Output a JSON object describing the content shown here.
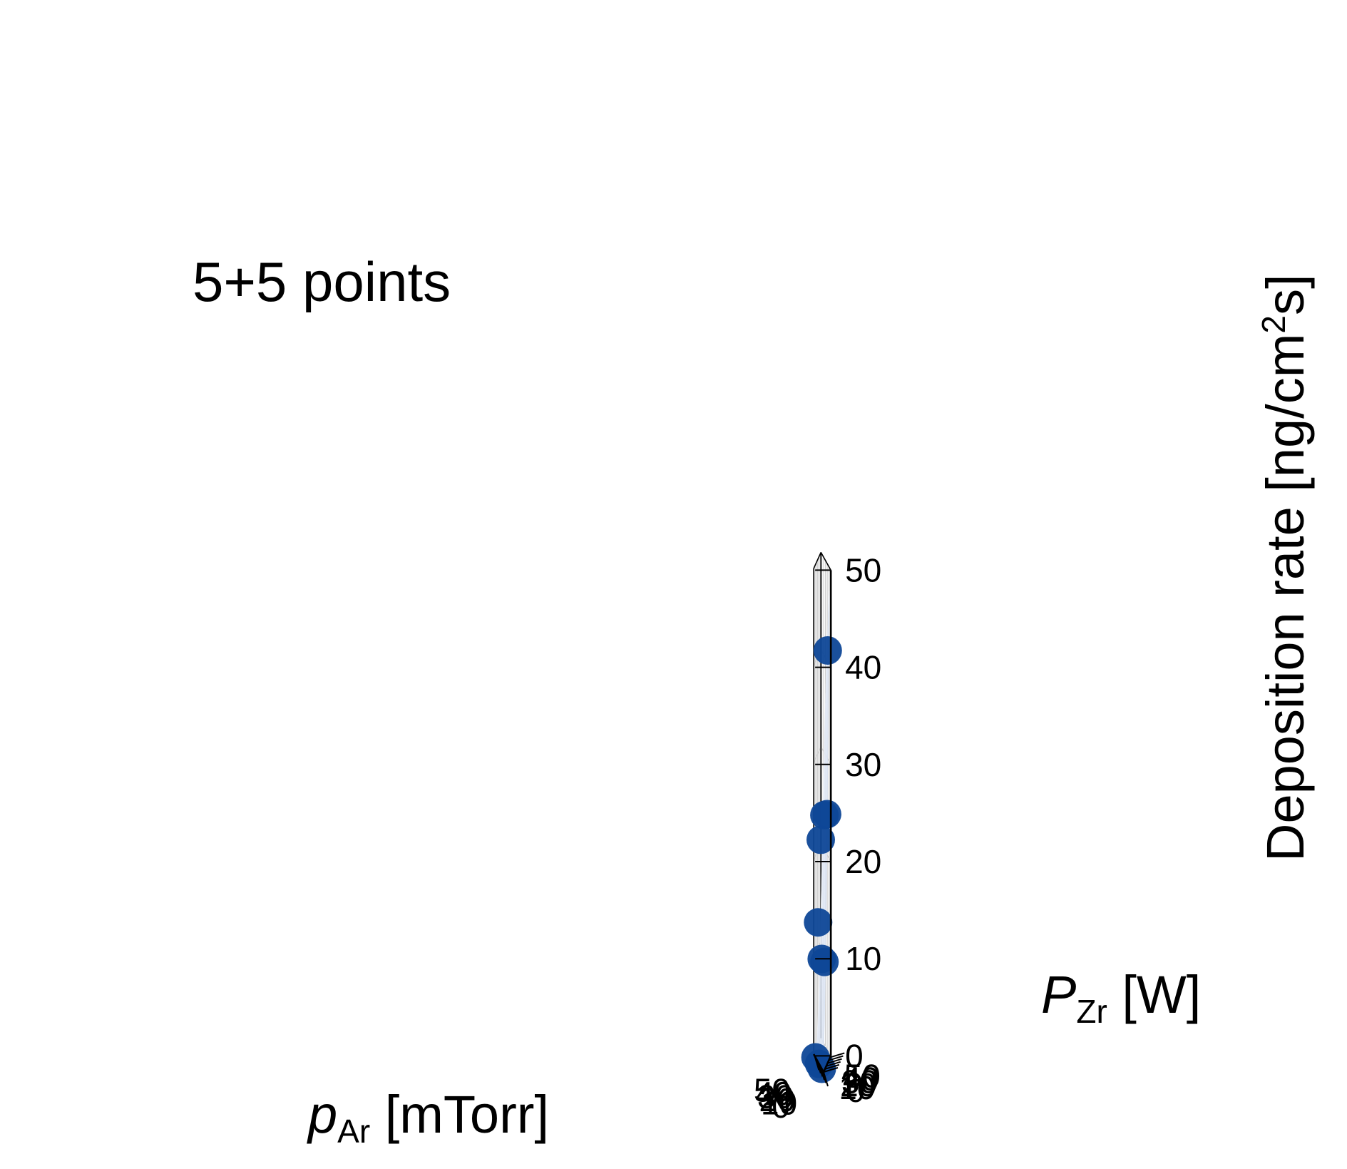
{
  "chart_data": {
    "type": "scatter3d",
    "annotation": "5+5 points",
    "x_axis": {
      "label_main": "p",
      "label_sub": "Ar",
      "label_unit": " [mTorr]",
      "ticks": [
        "0",
        "10",
        "20",
        "30",
        "40",
        "50"
      ],
      "range": [
        0,
        55
      ]
    },
    "y_axis": {
      "label_main": "P",
      "label_sub": "Zr",
      "label_unit": " [W]",
      "ticks": [
        "0",
        "10",
        "20",
        "30",
        "40",
        "50"
      ],
      "range": [
        0,
        55
      ]
    },
    "z_axis": {
      "label_text": "Deposition rate [ng/cm",
      "label_sup": "2",
      "label_end": "s]",
      "ticks": [
        "0",
        "10",
        "20",
        "30",
        "40",
        "50"
      ],
      "range": [
        0,
        50
      ]
    },
    "grid": true,
    "surface": {
      "fit": "smooth model surface",
      "color": "#7b9fd8"
    },
    "points": [
      {
        "p_Ar": 45,
        "P_Zr": 0,
        "rate": 0.0
      },
      {
        "p_Ar": 25,
        "P_Zr": 0,
        "rate": 0.0
      },
      {
        "p_Ar": 10,
        "P_Zr": 0,
        "rate": 0.0
      },
      {
        "p_Ar": 45,
        "P_Zr": 20,
        "rate": 13.3
      },
      {
        "p_Ar": 25,
        "P_Zr": 20,
        "rate": 10.2
      },
      {
        "p_Ar": 10,
        "P_Zr": 20,
        "rate": 10.4
      },
      {
        "p_Ar": 45,
        "P_Zr": 40,
        "rate": 21.2
      },
      {
        "p_Ar": 25,
        "P_Zr": 40,
        "rate": 24.4
      },
      {
        "p_Ar": 10,
        "P_Zr": 40,
        "rate": 25.0
      },
      {
        "p_Ar": 10,
        "P_Zr": 45,
        "rate": 41.7
      }
    ],
    "colors": {
      "marker": "#0e4797",
      "surface": "#7b9fd8",
      "floor": "#e6e6e6",
      "grid": "#cfcfcf"
    }
  }
}
